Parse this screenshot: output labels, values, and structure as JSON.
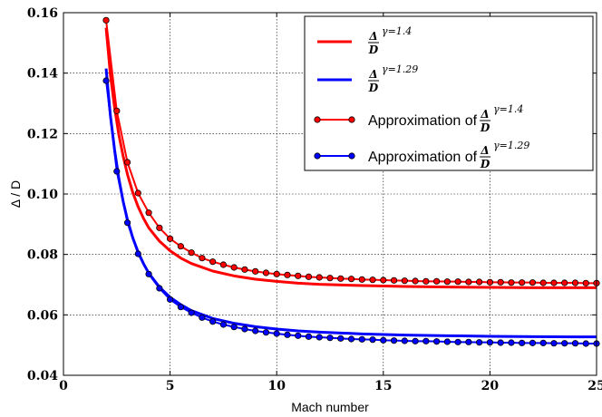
{
  "chart_data": {
    "type": "line",
    "title": "",
    "xlabel": "Mach number",
    "ylabel": "Δ / D",
    "xlim": [
      0,
      25
    ],
    "ylim": [
      0.04,
      0.16
    ],
    "xticks": [
      "0",
      "5",
      "10",
      "15",
      "20",
      "25"
    ],
    "yticks": [
      "0.04",
      "0.06",
      "0.08",
      "0.10",
      "0.12",
      "0.14",
      "0.16"
    ],
    "grid": true,
    "legend_position": "top-right",
    "series": [
      {
        "name_prefix": "",
        "frac_num": "Δ",
        "frac_den": "D",
        "sup": "γ=1.4",
        "color": "#ff0000",
        "marker": false,
        "x": [
          2,
          2.2,
          2.4,
          2.6,
          2.8,
          3,
          3.25,
          3.5,
          3.75,
          4,
          4.5,
          5,
          5.5,
          6,
          7,
          8,
          9,
          10,
          11,
          12,
          14,
          16,
          18,
          20,
          22,
          24,
          25
        ],
        "y": [
          0.155,
          0.1395,
          0.1285,
          0.1195,
          0.1125,
          0.1065,
          0.1005,
          0.0958,
          0.092,
          0.0888,
          0.0844,
          0.0812,
          0.0788,
          0.077,
          0.0745,
          0.0729,
          0.0718,
          0.0711,
          0.0705,
          0.0701,
          0.0697,
          0.0694,
          0.0692,
          0.0691,
          0.069,
          0.069,
          0.069
        ]
      },
      {
        "name_prefix": "",
        "frac_num": "Δ",
        "frac_den": "D",
        "sup": "γ=1.29",
        "color": "#0000ff",
        "marker": false,
        "x": [
          2,
          2.2,
          2.4,
          2.6,
          2.8,
          3,
          3.25,
          3.5,
          3.75,
          4,
          4.5,
          5,
          5.5,
          6,
          7,
          8,
          9,
          10,
          11,
          12,
          14,
          16,
          18,
          20,
          22,
          24,
          25
        ],
        "y": [
          0.1415,
          0.126,
          0.1145,
          0.105,
          0.0975,
          0.0915,
          0.0855,
          0.0808,
          0.077,
          0.0738,
          0.0692,
          0.0658,
          0.0634,
          0.0614,
          0.0588,
          0.0572,
          0.0561,
          0.0553,
          0.0547,
          0.0543,
          0.0537,
          0.0533,
          0.0531,
          0.0529,
          0.0528,
          0.0527,
          0.0527
        ]
      },
      {
        "name_prefix": "Approximation of ",
        "frac_num": "Δ",
        "frac_den": "D",
        "sup": "γ=1.4",
        "color": "#ff0000",
        "marker": true,
        "x": [
          2,
          2.5,
          3,
          3.5,
          4,
          4.5,
          5,
          5.5,
          6,
          6.5,
          7,
          7.5,
          8,
          8.5,
          9,
          9.5,
          10,
          10.5,
          11,
          11.5,
          12,
          12.5,
          13,
          13.5,
          14,
          14.5,
          15,
          15.5,
          16,
          16.5,
          17,
          17.5,
          18,
          18.5,
          19,
          19.5,
          20,
          20.5,
          21,
          21.5,
          22,
          22.5,
          23,
          23.5,
          24,
          24.5,
          25
        ],
        "y": [
          0.1575,
          0.1275,
          0.1105,
          0.1003,
          0.0938,
          0.0888,
          0.0852,
          0.0827,
          0.0806,
          0.0788,
          0.0776,
          0.0766,
          0.0757,
          0.075,
          0.0744,
          0.0739,
          0.0735,
          0.0732,
          0.0729,
          0.0726,
          0.0724,
          0.0722,
          0.072,
          0.0719,
          0.0717,
          0.0716,
          0.0715,
          0.0714,
          0.0713,
          0.0712,
          0.0711,
          0.0711,
          0.071,
          0.071,
          0.0709,
          0.0709,
          0.0708,
          0.0708,
          0.0707,
          0.0707,
          0.0707,
          0.0706,
          0.0706,
          0.0706,
          0.0706,
          0.0705,
          0.0705
        ]
      },
      {
        "name_prefix": "Approximation of ",
        "frac_num": "Δ",
        "frac_den": "D",
        "sup": "γ=1.29",
        "color": "#0000ff",
        "marker": true,
        "x": [
          2,
          2.5,
          3,
          3.5,
          4,
          4.5,
          5,
          5.5,
          6,
          6.5,
          7,
          7.5,
          8,
          8.5,
          9,
          9.5,
          10,
          10.5,
          11,
          11.5,
          12,
          12.5,
          13,
          13.5,
          14,
          14.5,
          15,
          15.5,
          16,
          16.5,
          17,
          17.5,
          18,
          18.5,
          19,
          19.5,
          20,
          20.5,
          21,
          21.5,
          22,
          22.5,
          23,
          23.5,
          24,
          24.5,
          25
        ],
        "y": [
          0.1375,
          0.1075,
          0.0905,
          0.0802,
          0.0735,
          0.0688,
          0.0651,
          0.0626,
          0.0607,
          0.0591,
          0.0578,
          0.0568,
          0.056,
          0.0553,
          0.0547,
          0.0542,
          0.0538,
          0.0534,
          0.0531,
          0.0528,
          0.0526,
          0.0524,
          0.0522,
          0.052,
          0.0519,
          0.0518,
          0.0516,
          0.0515,
          0.0514,
          0.0513,
          0.0513,
          0.0512,
          0.0511,
          0.051,
          0.051,
          0.0509,
          0.0509,
          0.0508,
          0.0508,
          0.0507,
          0.0507,
          0.0507,
          0.0506,
          0.0506,
          0.0506,
          0.0505,
          0.0505
        ]
      }
    ]
  }
}
